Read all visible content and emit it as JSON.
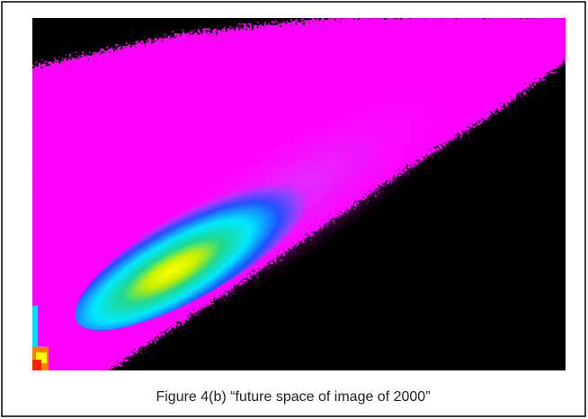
{
  "figure": {
    "caption": "Figure 4(b) “future space of image of 2000”"
  }
}
